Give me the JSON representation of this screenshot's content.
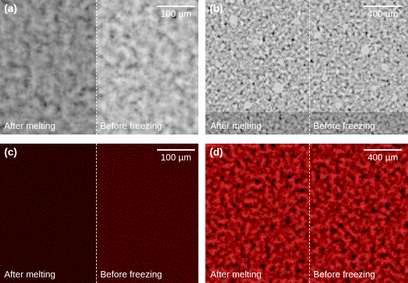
{
  "panels": [
    {
      "label": "(a)",
      "scale": "100 µm",
      "left_region": "After melting",
      "right_region": "Before freezing",
      "tone": "sem-fine"
    },
    {
      "label": "(b)",
      "scale": "400 µm",
      "left_region": "After melting",
      "right_region": "Before freezing",
      "tone": "sem-coarse"
    },
    {
      "label": "(c)",
      "scale": "100 µm",
      "left_region": "After melting",
      "right_region": "Before freezing",
      "tone": "fluor-dim"
    },
    {
      "label": "(d)",
      "scale": "400 µm",
      "left_region": "After melting",
      "right_region": "Before freezing",
      "tone": "fluor-bright"
    }
  ],
  "colors": {
    "fluorescence": "#c81818",
    "sem_gray": "#8a8a8a",
    "annotation": "#ffffff"
  }
}
